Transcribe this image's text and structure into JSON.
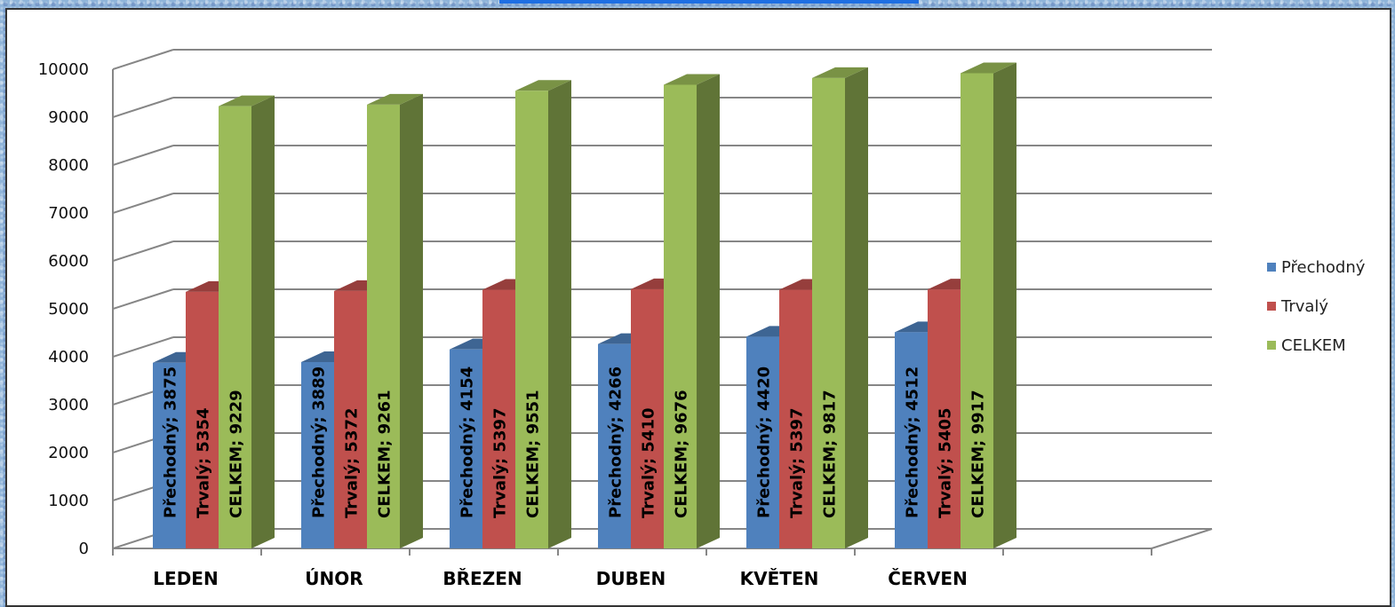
{
  "chart_data": {
    "type": "bar",
    "categories": [
      "LEDEN",
      "ÚNOR",
      "BŘEZEN",
      "DUBEN",
      "KVĚTEN",
      "ČERVEN"
    ],
    "series": [
      {
        "name": "Přechodný",
        "color": "#4f81bd",
        "values": [
          3875,
          3889,
          4154,
          4266,
          4420,
          4512
        ]
      },
      {
        "name": "Trvalý",
        "color": "#c0504d",
        "values": [
          5354,
          5372,
          5397,
          5410,
          5397,
          5405
        ]
      },
      {
        "name": "CELKEM",
        "color": "#9bbb59",
        "values": [
          9229,
          9261,
          9551,
          9676,
          9817,
          9917
        ]
      }
    ],
    "data_labels": [
      [
        "Přechodný; 3875",
        "Trvalý; 5354",
        "CELKEM; 9229"
      ],
      [
        "Přechodný; 3889",
        "Trvalý; 5372",
        "CELKEM; 9261"
      ],
      [
        "Přechodný; 4154",
        "Trvalý; 5397",
        "CELKEM; 9551"
      ],
      [
        "Přechodný; 4266",
        "Trvalý; 5410",
        "CELKEM; 9676"
      ],
      [
        "Přechodný; 4420",
        "Trvalý; 5397",
        "CELKEM; 9817"
      ],
      [
        "Přechodný; 4512",
        "Trvalý; 5405",
        "CELKEM; 9917"
      ]
    ],
    "yticks": [
      "0",
      "1000",
      "2000",
      "3000",
      "4000",
      "5000",
      "6000",
      "7000",
      "8000",
      "9000",
      "10000"
    ],
    "ylim": [
      0,
      10000
    ],
    "grid": true,
    "legend_position": "right",
    "style": "3d-column"
  }
}
